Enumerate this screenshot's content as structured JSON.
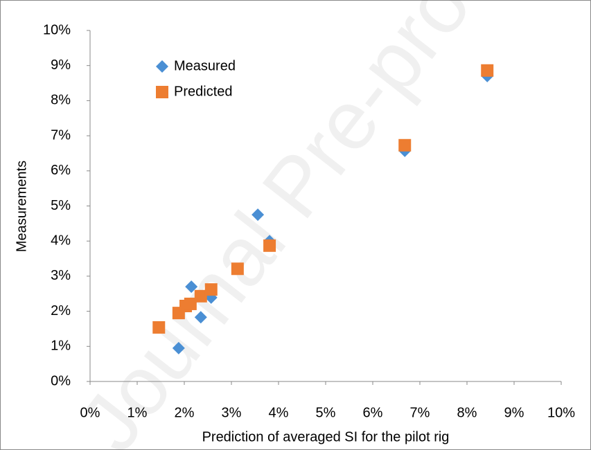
{
  "chart_data": {
    "type": "scatter",
    "watermark": "Journal Pre-proof",
    "xlabel": "Prediction of averaged SI for the pilot rig",
    "ylabel": "Measurements",
    "xlim": [
      0,
      10
    ],
    "ylim": [
      0,
      10
    ],
    "xticks": [
      {
        "value": 0,
        "label": "0%"
      },
      {
        "value": 1,
        "label": "1%"
      },
      {
        "value": 2,
        "label": "2%"
      },
      {
        "value": 3,
        "label": "3%"
      },
      {
        "value": 4,
        "label": "4%"
      },
      {
        "value": 5,
        "label": "5%"
      },
      {
        "value": 6,
        "label": "6%"
      },
      {
        "value": 7,
        "label": "7%"
      },
      {
        "value": 8,
        "label": "8%"
      },
      {
        "value": 9,
        "label": "9%"
      },
      {
        "value": 10,
        "label": "10%"
      }
    ],
    "yticks": [
      {
        "value": 0,
        "label": "0%"
      },
      {
        "value": 1,
        "label": "1%"
      },
      {
        "value": 2,
        "label": "2%"
      },
      {
        "value": 3,
        "label": "3%"
      },
      {
        "value": 4,
        "label": "4%"
      },
      {
        "value": 5,
        "label": "5%"
      },
      {
        "value": 6,
        "label": "6%"
      },
      {
        "value": 7,
        "label": "7%"
      },
      {
        "value": 8,
        "label": "8%"
      },
      {
        "value": 9,
        "label": "9%"
      },
      {
        "value": 10,
        "label": "10%"
      }
    ],
    "grid": false,
    "legend": "upper-left",
    "series": [
      {
        "name": "Measured",
        "color": "#4a8fd4",
        "marker": "diamond",
        "x": [
          1.46,
          1.88,
          2.03,
          2.15,
          2.35,
          2.57,
          3.56,
          3.81,
          6.68,
          8.43
        ],
        "values": [
          1.54,
          0.95,
          2.15,
          2.7,
          1.83,
          2.39,
          4.75,
          4.0,
          6.57,
          8.7
        ]
      },
      {
        "name": "Predicted",
        "color": "#ed7d31",
        "marker": "square",
        "x": [
          1.46,
          1.88,
          2.03,
          2.13,
          2.35,
          2.57,
          3.13,
          3.81,
          6.68,
          8.43
        ],
        "values": [
          1.54,
          1.95,
          2.15,
          2.21,
          2.43,
          2.62,
          3.21,
          3.87,
          6.73,
          8.86
        ]
      }
    ]
  }
}
